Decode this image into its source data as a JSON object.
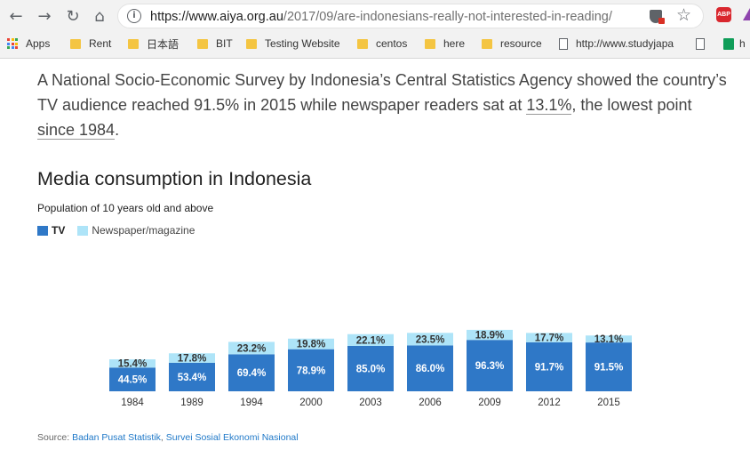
{
  "browser": {
    "url_host": "https://www.aiya.org.au",
    "url_path": "/2017/09/are-indonesians-really-not-interested-in-reading/",
    "bookmarks": [
      {
        "label": "Apps",
        "icon": "apps-icon"
      },
      {
        "label": "Rent",
        "icon": "folder-icon"
      },
      {
        "label": "日本語",
        "icon": "folder-icon"
      },
      {
        "label": "BIT",
        "icon": "folder-icon"
      },
      {
        "label": "Testing Website",
        "icon": "folder-icon"
      },
      {
        "label": "centos",
        "icon": "folder-icon"
      },
      {
        "label": "here",
        "icon": "folder-icon"
      },
      {
        "label": "resource",
        "icon": "folder-icon"
      },
      {
        "label": "http://www.studyjapa",
        "icon": "page-icon"
      },
      {
        "label": "",
        "icon": "page-icon"
      },
      {
        "label": "h",
        "icon": "sheets-icon"
      }
    ],
    "extension_abp": "ABP"
  },
  "article": {
    "para_1": "A National Socio-Economic Survey by Indonesia’s Central Statistics Agency showed the country’s TV audience reached 91.5% in 2015 while newspaper readers sat at ",
    "link_1": "13.1%",
    "para_2": ", the lowest point ",
    "link_2": "since 1984",
    "para_3": "."
  },
  "chart_data": {
    "type": "bar",
    "stacked": true,
    "title": "Media consumption in Indonesia",
    "subtitle": "Population of 10 years old and above",
    "categories": [
      "1984",
      "1989",
      "1994",
      "2000",
      "2003",
      "2006",
      "2009",
      "2012",
      "2015"
    ],
    "series": [
      {
        "name": "TV",
        "color": "#2f78c7",
        "values": [
          44.5,
          53.4,
          69.4,
          78.9,
          85.0,
          86.0,
          96.3,
          91.7,
          91.5
        ],
        "labels": [
          "44.5%",
          "53.4%",
          "69.4%",
          "78.9%",
          "85.0%",
          "86.0%",
          "96.3%",
          "91.7%",
          "91.5%"
        ]
      },
      {
        "name": "Newspaper/magazine",
        "color": "#aee4f8",
        "values": [
          15.4,
          17.8,
          23.2,
          19.8,
          22.1,
          23.5,
          18.9,
          17.7,
          13.1
        ],
        "labels": [
          "15.4%",
          "17.8%",
          "23.2%",
          "19.8%",
          "22.1%",
          "23.5%",
          "18.9%",
          "17.7%",
          "13.1%"
        ]
      }
    ],
    "legend_position": "top-left",
    "grid": false
  },
  "source": {
    "prefix": "Source: ",
    "link_1": "Badan Pusat Statistik",
    "sep": ", ",
    "link_2": "Survei Sosial Ekonomi Nasional"
  }
}
